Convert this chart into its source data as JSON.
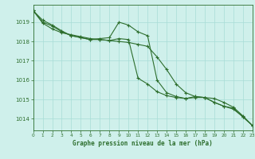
{
  "title": "Graphe pression niveau de la mer (hPa)",
  "bg_color": "#cff0eb",
  "grid_color": "#a8ddd6",
  "line_color": "#2d6e2d",
  "xlim": [
    0,
    23
  ],
  "ylim": [
    1013.4,
    1019.9
  ],
  "yticks": [
    1014,
    1015,
    1016,
    1017,
    1018,
    1019
  ],
  "xticks": [
    0,
    1,
    2,
    3,
    4,
    5,
    6,
    7,
    8,
    9,
    10,
    11,
    12,
    13,
    14,
    15,
    16,
    17,
    18,
    19,
    20,
    21,
    22,
    23
  ],
  "series1": [
    1019.6,
    1019.1,
    1018.85,
    1018.55,
    1018.3,
    1018.2,
    1018.1,
    1018.15,
    1018.2,
    1019.0,
    1018.85,
    1018.5,
    1018.3,
    1016.0,
    1015.35,
    1015.15,
    1015.05,
    1015.15,
    1015.1,
    1014.85,
    1014.65,
    1014.55,
    1014.1,
    1013.65
  ],
  "series2": [
    1019.6,
    1019.0,
    1018.8,
    1018.5,
    1018.3,
    1018.2,
    1018.1,
    1018.1,
    1018.05,
    1018.15,
    1018.1,
    1016.1,
    1015.8,
    1015.4,
    1015.2,
    1015.1,
    1015.05,
    1015.1,
    1015.1,
    1014.85,
    1014.65,
    1014.5,
    1014.1,
    1013.65
  ],
  "series3": [
    1019.6,
    1018.95,
    1018.65,
    1018.45,
    1018.35,
    1018.25,
    1018.15,
    1018.1,
    1018.05,
    1018.0,
    1017.95,
    1017.85,
    1017.75,
    1017.2,
    1016.55,
    1015.8,
    1015.35,
    1015.15,
    1015.1,
    1015.05,
    1014.85,
    1014.6,
    1014.15,
    1013.65
  ]
}
